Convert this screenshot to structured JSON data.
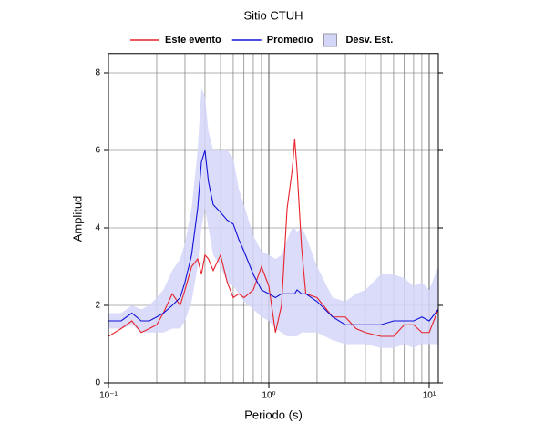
{
  "chart_data": {
    "type": "line",
    "title": "Sitio CTUH",
    "xlabel": "Periodo (s)",
    "ylabel": "Amplitud",
    "x": [
      0.1,
      0.12,
      0.14,
      0.16,
      0.18,
      0.2,
      0.22,
      0.25,
      0.28,
      0.3,
      0.33,
      0.36,
      0.38,
      0.4,
      0.42,
      0.45,
      0.5,
      0.55,
      0.6,
      0.65,
      0.7,
      0.8,
      0.9,
      1.0,
      1.1,
      1.2,
      1.3,
      1.4,
      1.45,
      1.5,
      1.6,
      1.7,
      2.0,
      2.5,
      3,
      3.5,
      4,
      5,
      6,
      7,
      8,
      9,
      10,
      11.4
    ],
    "series": [
      {
        "name": "Desv. Est.",
        "color": "#d4d6f8",
        "upper": [
          1.8,
          1.8,
          2.0,
          1.9,
          2.0,
          2.2,
          2.4,
          2.9,
          3.2,
          3.6,
          4.5,
          6.0,
          7.6,
          7.4,
          6.5,
          6.0,
          6.0,
          6.0,
          5.8,
          5.0,
          4.6,
          3.8,
          3.4,
          3.3,
          3.2,
          3.3,
          3.7,
          4.0,
          4.0,
          3.9,
          4.0,
          3.8,
          3.0,
          2.2,
          2.1,
          2.3,
          2.4,
          2.8,
          2.8,
          2.7,
          2.5,
          2.6,
          2.4,
          3.0
        ],
        "lower": [
          1.4,
          1.4,
          1.5,
          1.3,
          1.3,
          1.3,
          1.3,
          1.4,
          1.4,
          1.6,
          2.1,
          3.0,
          4.0,
          4.5,
          4.0,
          3.3,
          3.0,
          2.6,
          2.5,
          2.3,
          2.1,
          1.9,
          1.7,
          1.6,
          1.4,
          1.3,
          1.2,
          1.2,
          1.2,
          1.2,
          1.3,
          1.3,
          1.3,
          1.1,
          1.0,
          1.0,
          1.0,
          0.9,
          0.9,
          1.0,
          0.9,
          1.0,
          1.0,
          1.0
        ]
      },
      {
        "name": "Este evento",
        "color": "#e8202a",
        "values": [
          1.2,
          1.4,
          1.6,
          1.3,
          1.4,
          1.5,
          1.8,
          2.3,
          2.0,
          2.4,
          3.0,
          3.2,
          2.8,
          3.3,
          3.2,
          2.9,
          3.3,
          2.6,
          2.2,
          2.3,
          2.2,
          2.4,
          3.0,
          2.5,
          1.3,
          2.0,
          4.5,
          5.5,
          6.3,
          5.5,
          3.5,
          2.3,
          2.2,
          1.7,
          1.7,
          1.4,
          1.3,
          1.2,
          1.2,
          1.5,
          1.5,
          1.3,
          1.3,
          1.9
        ]
      },
      {
        "name": "Promedio",
        "color": "#1010d8",
        "values": [
          1.6,
          1.6,
          1.8,
          1.6,
          1.6,
          1.7,
          1.8,
          2.0,
          2.2,
          2.6,
          3.3,
          4.5,
          5.7,
          6.0,
          5.2,
          4.6,
          4.4,
          4.2,
          4.1,
          3.7,
          3.4,
          2.8,
          2.4,
          2.3,
          2.2,
          2.3,
          2.3,
          2.3,
          2.3,
          2.4,
          2.3,
          2.3,
          2.1,
          1.7,
          1.5,
          1.5,
          1.5,
          1.5,
          1.6,
          1.6,
          1.6,
          1.7,
          1.6,
          1.9
        ]
      }
    ],
    "xlim": [
      0.1,
      11.4
    ],
    "ylim": [
      0,
      8.5
    ],
    "xscale": "log",
    "xticks": [
      {
        "value": 0.1,
        "label": "10⁻¹"
      },
      {
        "value": 1,
        "label": "10⁰"
      },
      {
        "value": 10,
        "label": "10¹"
      }
    ],
    "yticks": [
      0,
      2,
      4,
      6,
      8
    ],
    "grid": true,
    "legend": "top"
  }
}
